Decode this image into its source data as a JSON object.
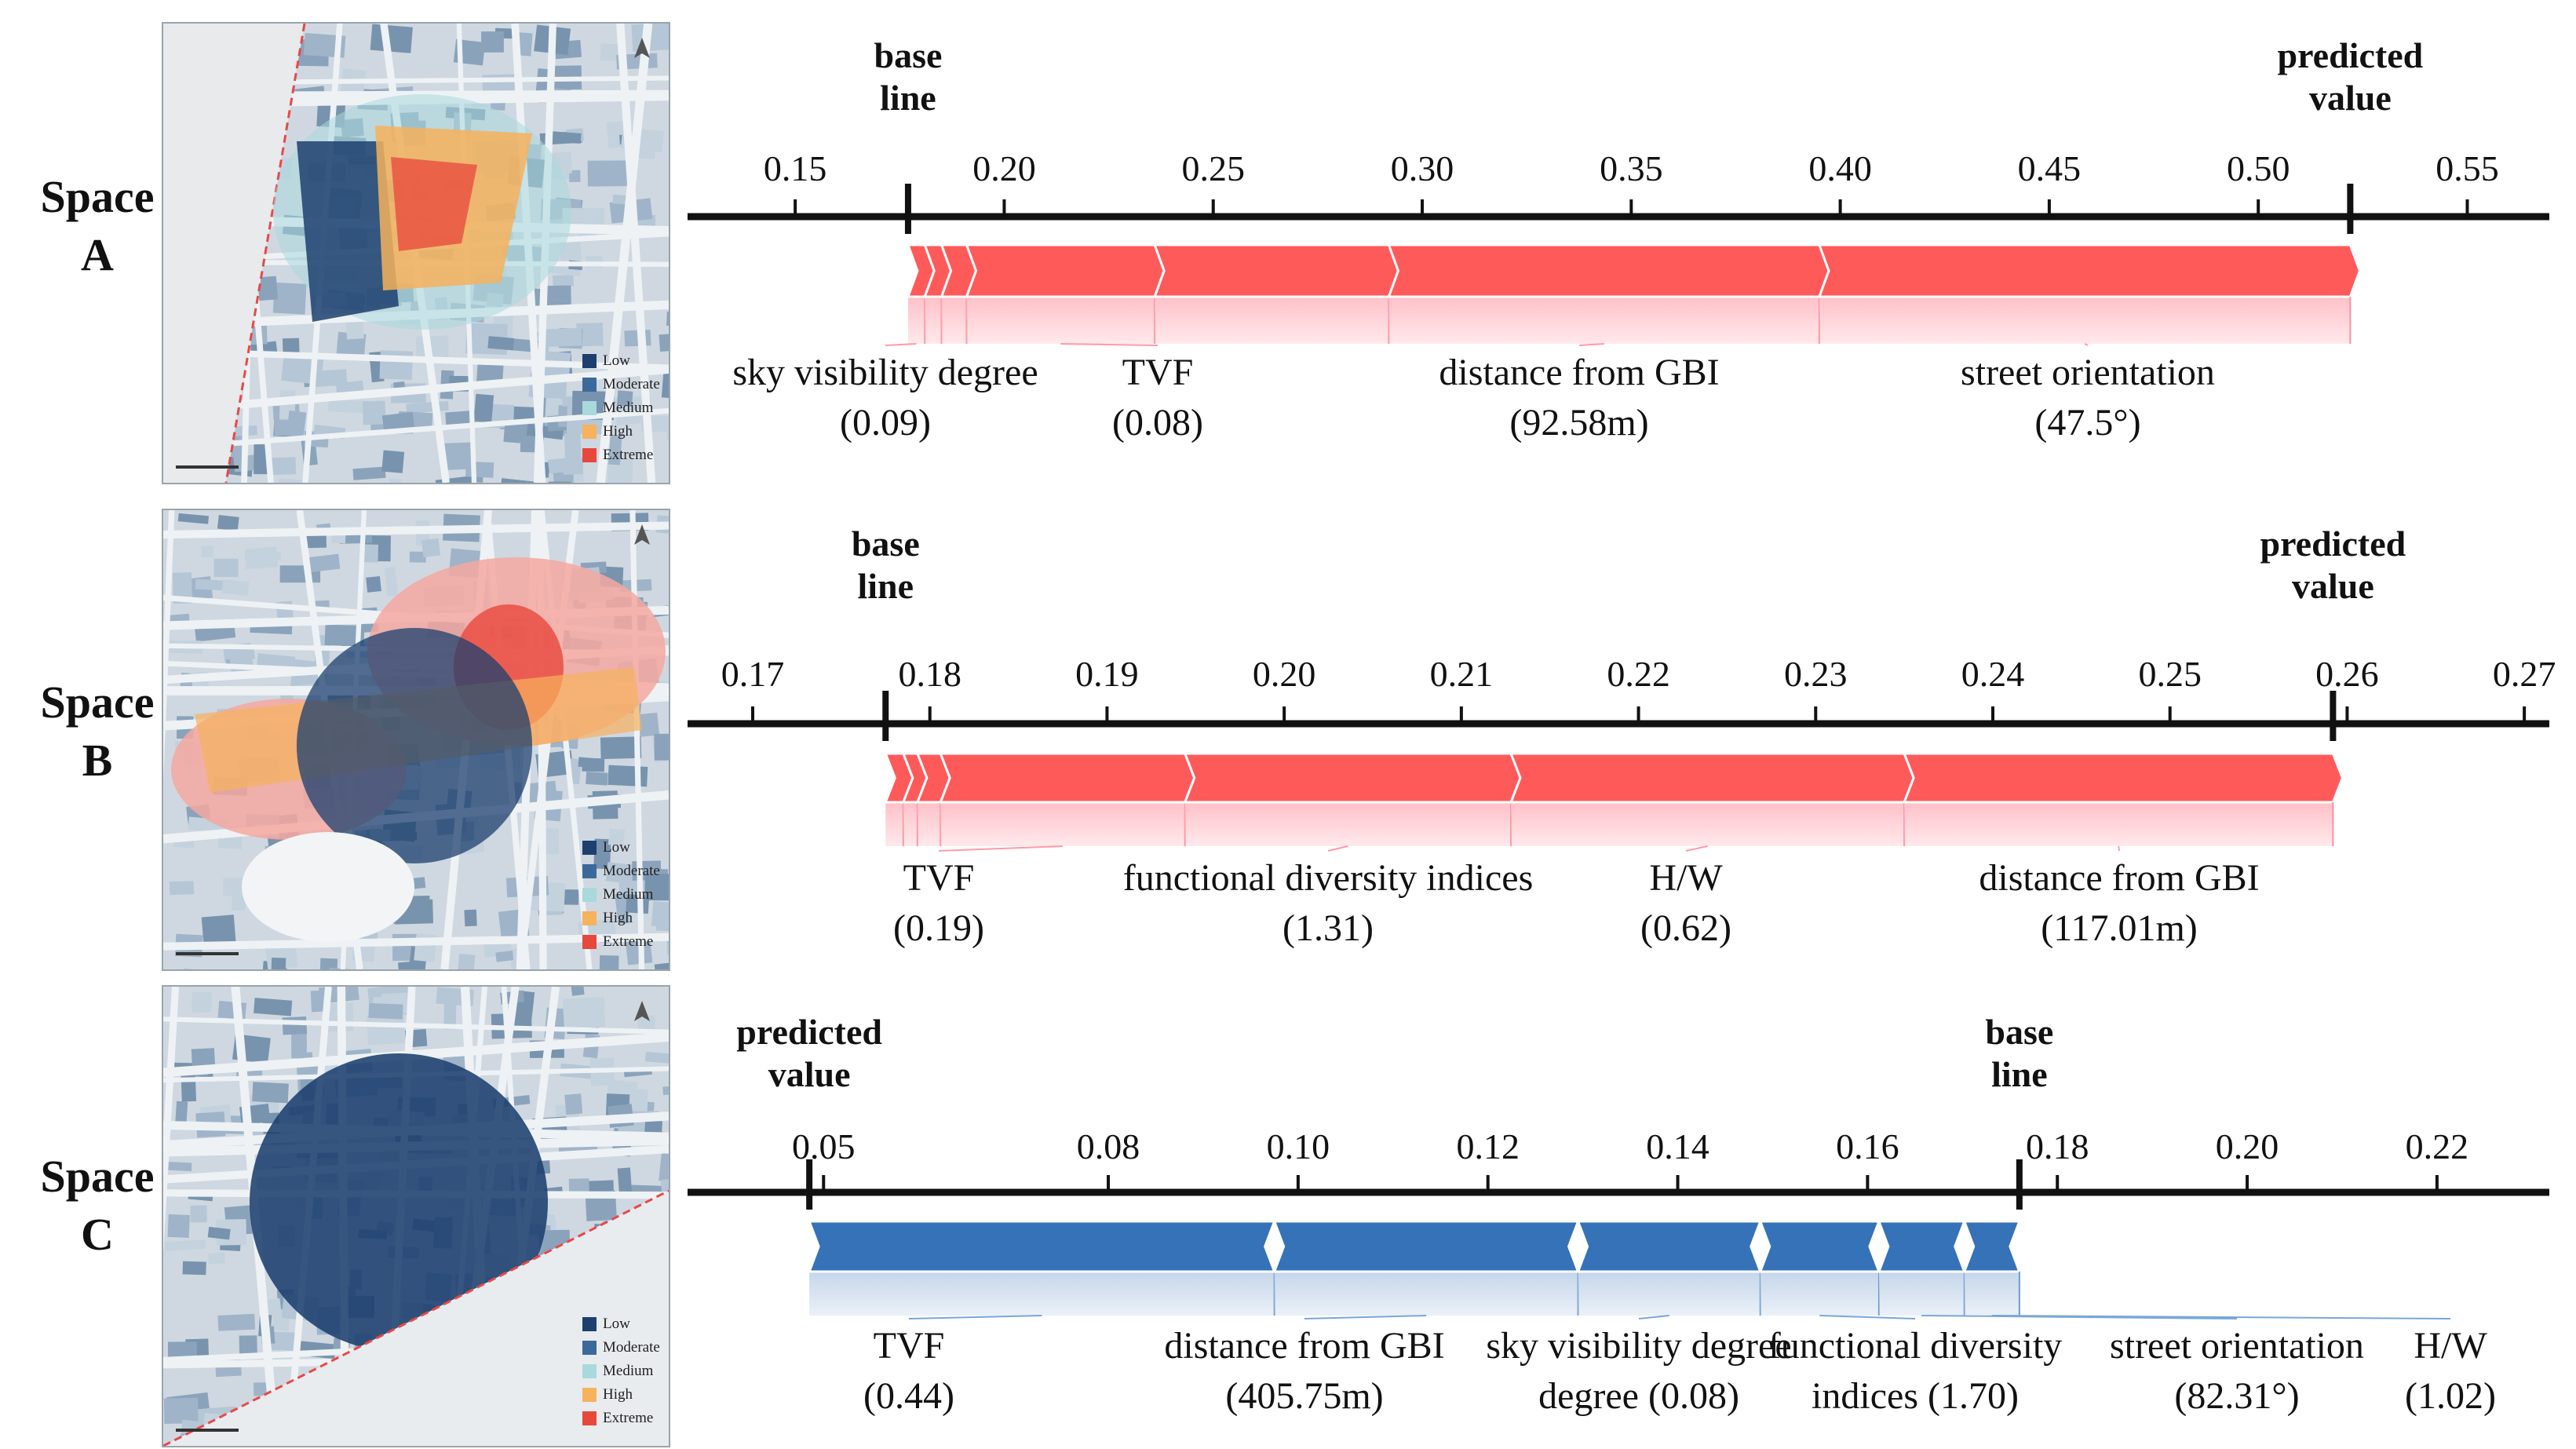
{
  "legend_labels": [
    "Low",
    "Moderate",
    "Medium",
    "High",
    "Extreme"
  ],
  "legend_colors": [
    "#1c3f6e",
    "#3b6a9a",
    "#a9d9dc",
    "#f6b25c",
    "#e8473c"
  ],
  "colors": {
    "positive_bar": "#ff5a5a",
    "positive_fade": "#ffc0c8",
    "negative_bar": "#3572b8",
    "negative_fade": "#c5d6ea",
    "axis": "#111111"
  },
  "chart_data": [
    {
      "type": "bar",
      "space_label": [
        "Space",
        "A"
      ],
      "base_label": [
        "base",
        "line"
      ],
      "pred_label": [
        "predicted",
        "value"
      ],
      "ticks": [
        "0.15",
        "0.20",
        "0.25",
        "0.30",
        "0.35",
        "0.40",
        "0.45",
        "0.50",
        "0.55"
      ],
      "tick_values": [
        0.15,
        0.2,
        0.25,
        0.3,
        0.35,
        0.4,
        0.45,
        0.5,
        0.55
      ],
      "xlim": [
        0.125,
        0.57
      ],
      "base_value": 0.177,
      "predicted_value": 0.522,
      "direction": "positive",
      "segments": [
        {
          "feature": "sky visibility degree",
          "value": "(0.09)",
          "from": 0.177,
          "to": 0.181
        },
        {
          "feature": "",
          "value": "",
          "from": 0.181,
          "to": 0.185
        },
        {
          "feature": "",
          "value": "",
          "from": 0.185,
          "to": 0.191
        },
        {
          "feature": "TVF",
          "value": "(0.08)",
          "from": 0.191,
          "to": 0.236
        },
        {
          "feature": "",
          "value": "",
          "from": 0.236,
          "to": 0.292
        },
        {
          "feature": "distance from GBI",
          "value": "(92.58m)",
          "from": 0.292,
          "to": 0.395
        },
        {
          "feature": "street orientation",
          "value": "(47.5°)",
          "from": 0.395,
          "to": 0.522
        }
      ]
    },
    {
      "type": "bar",
      "space_label": [
        "Space",
        "B"
      ],
      "base_label": [
        "base",
        "line"
      ],
      "pred_label": [
        "predicted",
        "value"
      ],
      "ticks": [
        "0.17",
        "0.18",
        "0.19",
        "0.20",
        "0.21",
        "0.22",
        "0.23",
        "0.24",
        "0.25",
        "0.26",
        "0.27"
      ],
      "tick_values": [
        0.17,
        0.18,
        0.19,
        0.2,
        0.21,
        0.22,
        0.23,
        0.24,
        0.25,
        0.26,
        0.27
      ],
      "xlim": [
        0.1665,
        0.2715
      ],
      "base_value": 0.1775,
      "predicted_value": 0.2592,
      "direction": "positive",
      "segments": [
        {
          "feature": "",
          "value": "",
          "from": 0.1775,
          "to": 0.1785
        },
        {
          "feature": "",
          "value": "",
          "from": 0.1785,
          "to": 0.1793
        },
        {
          "feature": "",
          "value": "",
          "from": 0.1793,
          "to": 0.1806
        },
        {
          "feature": "TVF",
          "value": "(0.19)",
          "from": 0.1806,
          "to": 0.1944
        },
        {
          "feature": "functional diversity indices",
          "value": "(1.31)",
          "from": 0.1944,
          "to": 0.2128
        },
        {
          "feature": "H/W",
          "value": "(0.62)",
          "from": 0.2128,
          "to": 0.235
        },
        {
          "feature": "distance from GBI",
          "value": "(117.01m)",
          "from": 0.235,
          "to": 0.2592
        }
      ]
    },
    {
      "type": "bar",
      "space_label": [
        "Space",
        "C"
      ],
      "base_label": [
        "base",
        "line"
      ],
      "pred_label": [
        "predicted",
        "value"
      ],
      "ticks": [
        "0.05",
        "0.08",
        "0.10",
        "0.12",
        "0.14",
        "0.16",
        "0.18",
        "0.20",
        "0.22"
      ],
      "tick_values": [
        0.05,
        0.08,
        0.1,
        0.12,
        0.14,
        0.16,
        0.18,
        0.2,
        0.22
      ],
      "xlim": [
        0.036,
        0.232
      ],
      "base_value": 0.176,
      "predicted_value": 0.0485,
      "direction": "negative",
      "segments": [
        {
          "feature": "TVF",
          "value": "(0.44)",
          "from": 0.0485,
          "to": 0.0975
        },
        {
          "feature": "distance from GBI",
          "value": "(405.75m)",
          "from": 0.0975,
          "to": 0.1295
        },
        {
          "feature": "sky visibility degree",
          "value": "degree (0.08)",
          "from": 0.1295,
          "to": 0.1487
        },
        {
          "feature": "functional diversity",
          "value": "indices (1.70)",
          "from": 0.1487,
          "to": 0.1612
        },
        {
          "feature": "street orientation",
          "value": "(82.31°)",
          "from": 0.1612,
          "to": 0.1702
        },
        {
          "feature": "H/W",
          "value": "(1.02)",
          "from": 0.1702,
          "to": 0.176
        }
      ]
    }
  ]
}
